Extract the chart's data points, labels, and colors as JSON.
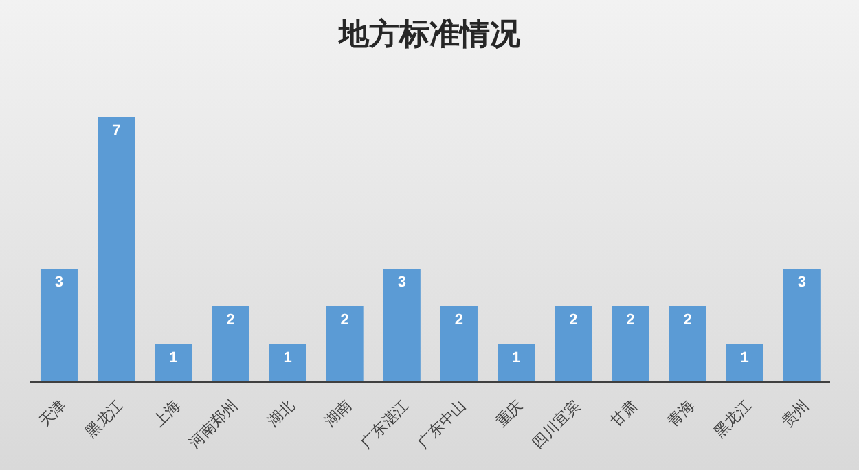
{
  "chart_data": {
    "type": "bar",
    "title": "地方标准情况",
    "categories": [
      "天津",
      "黑龙江",
      "上海",
      "河南郑州",
      "湖北",
      "湖南",
      "广东湛江",
      "广东中山",
      "重庆",
      "四川宜宾",
      "甘肃",
      "青海",
      "黑龙江",
      "贵州"
    ],
    "values": [
      3,
      7,
      1,
      2,
      1,
      2,
      3,
      2,
      1,
      2,
      2,
      2,
      1,
      3
    ],
    "color": "#5b9bd5",
    "tick_labels": "x",
    "data_labels": true
  }
}
